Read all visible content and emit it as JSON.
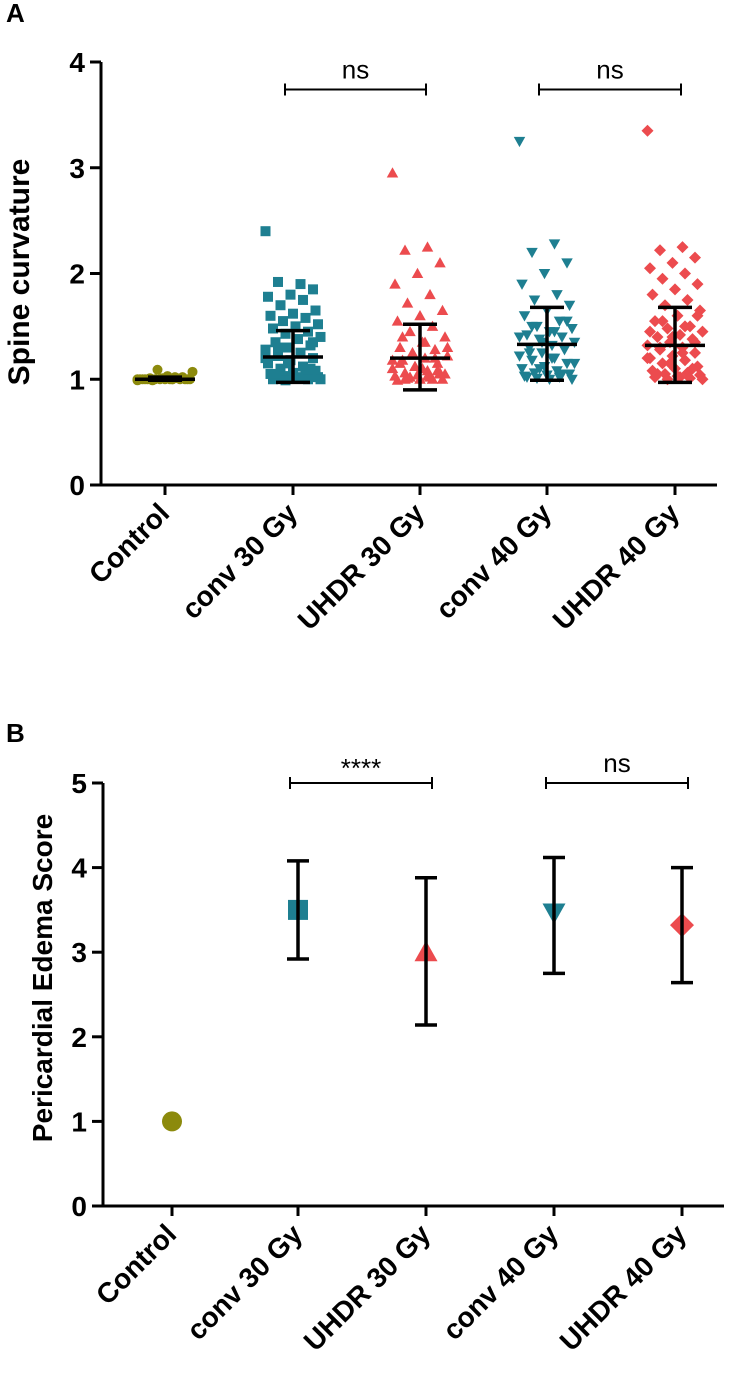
{
  "chart_data": [
    {
      "panel": "A",
      "type": "scatter",
      "ylabel": "Spine curvature",
      "ylim": [
        0,
        4
      ],
      "yticks": [
        0,
        1,
        2,
        3,
        4
      ],
      "categories": [
        "Control",
        "conv 30 Gy",
        "UHDR 30 Gy",
        "conv 40 Gy",
        "UHDR 40 Gy"
      ],
      "series": [
        {
          "name": "Control",
          "marker": "circle",
          "color": "#8c8a0c",
          "mean": 1.0,
          "lower": 0.99,
          "upper": 1.02,
          "points": [
            1.0,
            1.0,
            1.0,
            1.0,
            1.01,
            1.0,
            1.02,
            0.99,
            1.0,
            1.0,
            1.0,
            1.01,
            1.0,
            1.0,
            1.03,
            1.0,
            1.0,
            1.09,
            1.07,
            1.0,
            1.0,
            1.02,
            1.0,
            0.99,
            1.0,
            1.01
          ]
        },
        {
          "name": "conv 30 Gy",
          "marker": "square",
          "color": "#1e7f91",
          "mean": 1.21,
          "lower": 0.97,
          "upper": 1.46,
          "points": [
            2.4,
            1.9,
            1.92,
            1.85,
            1.8,
            1.78,
            1.75,
            1.7,
            1.65,
            1.62,
            1.6,
            1.58,
            1.55,
            1.52,
            1.5,
            1.48,
            1.45,
            1.43,
            1.4,
            1.38,
            1.35,
            1.32,
            1.3,
            1.28,
            1.25,
            1.22,
            1.2,
            1.18,
            1.15,
            1.12,
            1.1,
            1.08,
            1.06,
            1.05,
            1.04,
            1.03,
            1.02,
            1.01,
            1.0,
            1.0,
            0.99,
            1.0,
            1.02,
            1.05,
            1.1,
            1.15,
            1.2,
            1.25,
            1.3,
            1.35
          ]
        },
        {
          "name": "UHDR 30 Gy",
          "marker": "triangle-up",
          "color": "#ec4b4e",
          "mean": 1.2,
          "lower": 0.9,
          "upper": 1.52,
          "points": [
            2.95,
            2.25,
            2.22,
            2.1,
            2.0,
            1.9,
            1.8,
            1.72,
            1.65,
            1.6,
            1.55,
            1.5,
            1.45,
            1.4,
            1.35,
            1.3,
            1.28,
            1.25,
            1.22,
            1.2,
            1.18,
            1.15,
            1.12,
            1.1,
            1.08,
            1.06,
            1.05,
            1.04,
            1.03,
            1.02,
            1.01,
            1.0,
            1.0,
            0.99,
            1.0,
            1.02,
            1.05,
            1.1,
            1.15,
            1.2,
            1.25,
            1.3,
            1.35,
            1.4,
            1.08,
            1.12,
            1.18,
            1.03,
            1.0,
            1.06
          ]
        },
        {
          "name": "conv 40 Gy",
          "marker": "triangle-down",
          "color": "#1e7f91",
          "mean": 1.33,
          "lower": 0.99,
          "upper": 1.68,
          "points": [
            3.25,
            2.28,
            2.2,
            2.1,
            2.0,
            1.9,
            1.8,
            1.75,
            1.7,
            1.65,
            1.6,
            1.55,
            1.5,
            1.48,
            1.45,
            1.42,
            1.4,
            1.38,
            1.35,
            1.32,
            1.3,
            1.28,
            1.25,
            1.22,
            1.2,
            1.18,
            1.15,
            1.12,
            1.1,
            1.08,
            1.06,
            1.05,
            1.04,
            1.03,
            1.02,
            1.01,
            1.0,
            1.0,
            1.02,
            1.05,
            1.1,
            1.15,
            1.2,
            1.25,
            1.3,
            1.35,
            1.4,
            1.45,
            1.5,
            1.55
          ]
        },
        {
          "name": "UHDR 40 Gy",
          "marker": "diamond",
          "color": "#ec4b4e",
          "mean": 1.32,
          "lower": 0.97,
          "upper": 1.68,
          "points": [
            3.35,
            2.25,
            2.22,
            2.15,
            2.1,
            2.05,
            2.0,
            1.95,
            1.9,
            1.85,
            1.8,
            1.75,
            1.7,
            1.65,
            1.6,
            1.55,
            1.5,
            1.48,
            1.45,
            1.42,
            1.4,
            1.38,
            1.35,
            1.32,
            1.3,
            1.28,
            1.25,
            1.22,
            1.2,
            1.18,
            1.15,
            1.12,
            1.1,
            1.08,
            1.06,
            1.05,
            1.04,
            1.03,
            1.02,
            1.01,
            1.0,
            1.0,
            1.02,
            1.05,
            1.1,
            1.15,
            1.2,
            1.25,
            1.3,
            1.35,
            1.4,
            1.45,
            1.5,
            1.55,
            1.6
          ]
        }
      ],
      "comparisons": [
        {
          "from": "conv 30 Gy",
          "to": "UHDR 30 Gy",
          "label": "ns",
          "y": 3.74
        },
        {
          "from": "conv 40 Gy",
          "to": "UHDR 40 Gy",
          "label": "ns",
          "y": 3.74
        }
      ]
    },
    {
      "panel": "B",
      "type": "scatter",
      "ylabel": "Pericardial Edema Score",
      "ylim": [
        0,
        5
      ],
      "yticks": [
        0,
        1,
        2,
        3,
        4,
        5
      ],
      "categories": [
        "Control",
        "conv 30 Gy",
        "UHDR 30 Gy",
        "conv 40 Gy",
        "UHDR 40 Gy"
      ],
      "series": [
        {
          "name": "Control",
          "marker": "circle",
          "color": "#8c8a0c",
          "mean": 1.0,
          "lower": 1.0,
          "upper": 1.0
        },
        {
          "name": "conv 30 Gy",
          "marker": "square",
          "color": "#1e7f91",
          "mean": 3.5,
          "lower": 2.92,
          "upper": 4.08
        },
        {
          "name": "UHDR 30 Gy",
          "marker": "triangle-up",
          "color": "#ec4b4e",
          "mean": 3.0,
          "lower": 2.14,
          "upper": 3.88
        },
        {
          "name": "conv 40 Gy",
          "marker": "triangle-down",
          "color": "#1e7f91",
          "mean": 3.47,
          "lower": 2.75,
          "upper": 4.12
        },
        {
          "name": "UHDR 40 Gy",
          "marker": "diamond",
          "color": "#ec4b4e",
          "mean": 3.32,
          "lower": 2.64,
          "upper": 4.0
        }
      ],
      "comparisons": [
        {
          "from": "conv 30 Gy",
          "to": "UHDR 30 Gy",
          "label": "****",
          "y": 5.0
        },
        {
          "from": "conv 40 Gy",
          "to": "UHDR 40 Gy",
          "label": "ns",
          "y": 5.0
        }
      ]
    }
  ]
}
